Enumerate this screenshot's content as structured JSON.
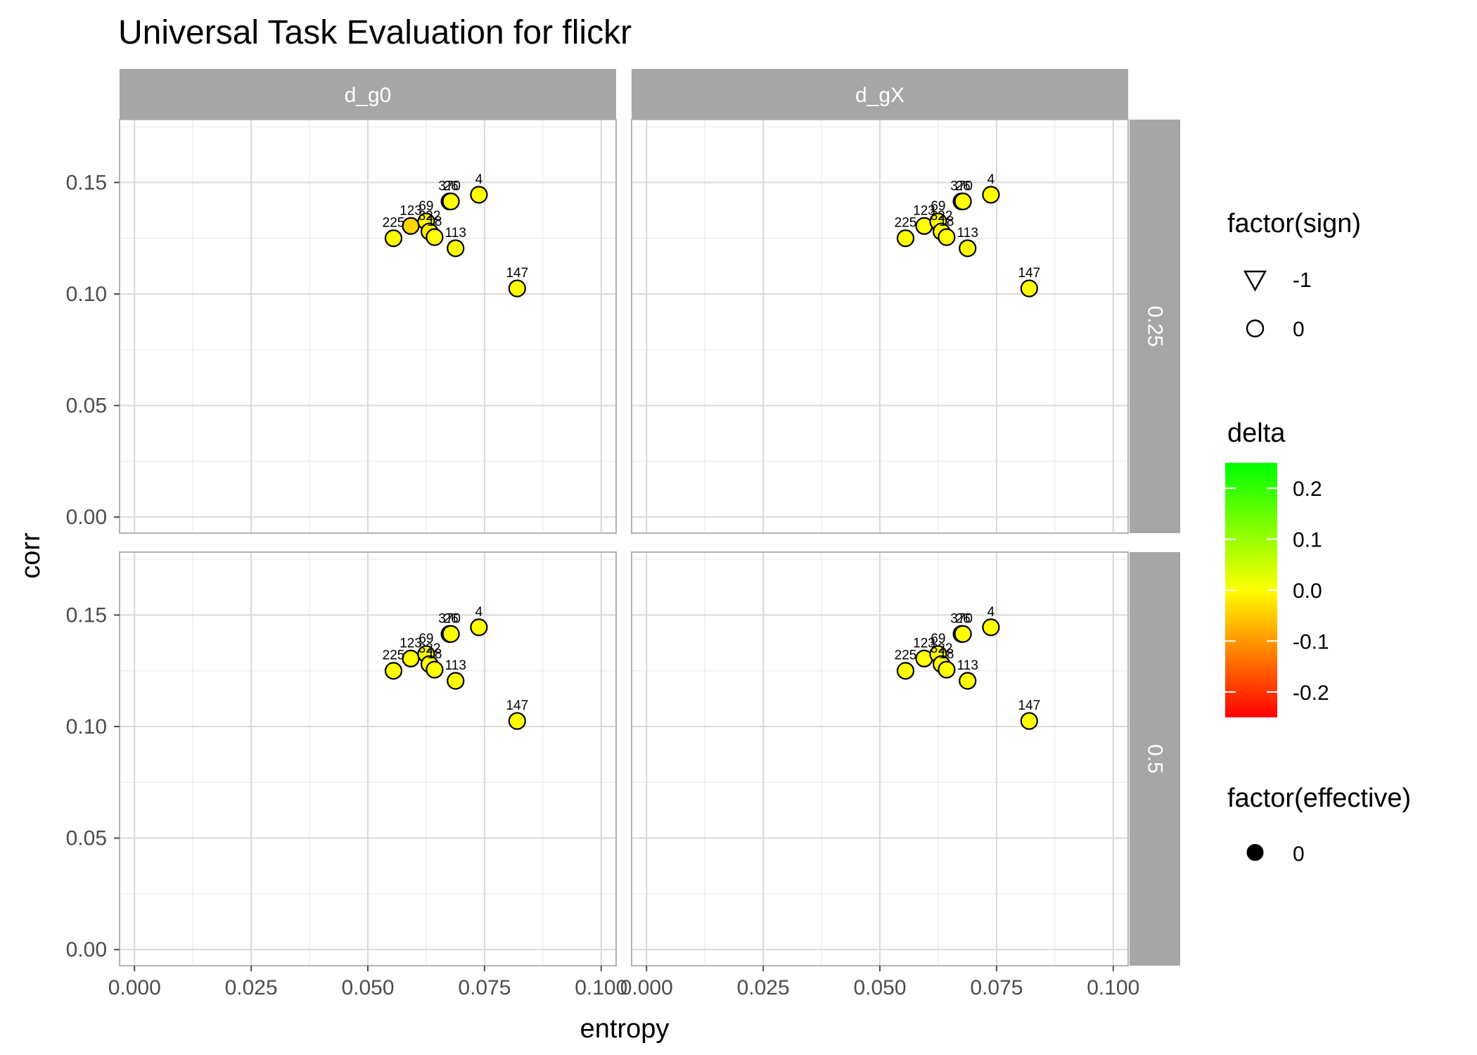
{
  "chart_data": {
    "type": "scatter",
    "title": "Universal Task Evaluation for flickr",
    "xlabel": "entropy",
    "ylabel": "corr",
    "xlim": [
      0,
      0.1
    ],
    "ylim": [
      0,
      0.15
    ],
    "x_ticks": [
      "0.000",
      "0.025",
      "0.050",
      "0.075",
      "0.100"
    ],
    "y_ticks": [
      "0.00",
      "0.05",
      "0.10",
      "0.15"
    ],
    "facet_columns": [
      "d_gX",
      "d_g0"
    ],
    "facet_rows": [
      "0.25",
      "0.5"
    ],
    "grid": true,
    "panels": [
      {
        "col": "d_g0",
        "row": "0.25",
        "points": [
          {
            "label": "225",
            "x": 0.0555,
            "y": 0.125,
            "delta": 0.0
          },
          {
            "label": "123",
            "x": 0.0592,
            "y": 0.1305,
            "delta": -0.04
          },
          {
            "label": "69",
            "x": 0.0625,
            "y": 0.1325,
            "delta": 0.0
          },
          {
            "label": "322",
            "x": 0.0632,
            "y": 0.128,
            "delta": -0.02
          },
          {
            "label": "18",
            "x": 0.0643,
            "y": 0.1255,
            "delta": 0.0
          },
          {
            "label": "370",
            "x": 0.0675,
            "y": 0.1415,
            "delta": 0.0
          },
          {
            "label": "26",
            "x": 0.0678,
            "y": 0.1415,
            "delta": 0.0
          },
          {
            "label": "113",
            "x": 0.0688,
            "y": 0.1205,
            "delta": 0.0
          },
          {
            "label": "4",
            "x": 0.0738,
            "y": 0.1445,
            "delta": 0.0
          },
          {
            "label": "147",
            "x": 0.082,
            "y": 0.1025,
            "delta": 0.0
          }
        ]
      },
      {
        "col": "d_gX",
        "row": "0.25",
        "points": [
          {
            "label": "225",
            "x": 0.0555,
            "y": 0.125,
            "delta": 0.0
          },
          {
            "label": "123",
            "x": 0.0595,
            "y": 0.1305,
            "delta": 0.0
          },
          {
            "label": "69",
            "x": 0.0625,
            "y": 0.1325,
            "delta": 0.0
          },
          {
            "label": "322",
            "x": 0.0632,
            "y": 0.128,
            "delta": 0.0
          },
          {
            "label": "18",
            "x": 0.0643,
            "y": 0.1255,
            "delta": 0.0
          },
          {
            "label": "370",
            "x": 0.0675,
            "y": 0.1415,
            "delta": 0.0
          },
          {
            "label": "26",
            "x": 0.0678,
            "y": 0.1415,
            "delta": 0.0
          },
          {
            "label": "113",
            "x": 0.0688,
            "y": 0.1205,
            "delta": 0.0
          },
          {
            "label": "4",
            "x": 0.0738,
            "y": 0.1445,
            "delta": 0.0
          },
          {
            "label": "147",
            "x": 0.082,
            "y": 0.1025,
            "delta": 0.0
          }
        ]
      },
      {
        "col": "d_g0",
        "row": "0.5",
        "points": [
          {
            "label": "225",
            "x": 0.0555,
            "y": 0.125,
            "delta": 0.0
          },
          {
            "label": "123",
            "x": 0.0592,
            "y": 0.1305,
            "delta": 0.0
          },
          {
            "label": "69",
            "x": 0.0625,
            "y": 0.1325,
            "delta": 0.0
          },
          {
            "label": "322",
            "x": 0.0632,
            "y": 0.128,
            "delta": 0.0
          },
          {
            "label": "18",
            "x": 0.0643,
            "y": 0.1255,
            "delta": 0.0
          },
          {
            "label": "370",
            "x": 0.0675,
            "y": 0.1415,
            "delta": 0.0
          },
          {
            "label": "26",
            "x": 0.0678,
            "y": 0.1415,
            "delta": 0.0
          },
          {
            "label": "113",
            "x": 0.0688,
            "y": 0.1205,
            "delta": 0.0
          },
          {
            "label": "4",
            "x": 0.0738,
            "y": 0.1445,
            "delta": 0.0
          },
          {
            "label": "147",
            "x": 0.082,
            "y": 0.1025,
            "delta": 0.0
          }
        ]
      },
      {
        "col": "d_gX",
        "row": "0.5",
        "points": [
          {
            "label": "225",
            "x": 0.0555,
            "y": 0.125,
            "delta": 0.0
          },
          {
            "label": "123",
            "x": 0.0595,
            "y": 0.1305,
            "delta": 0.0
          },
          {
            "label": "69",
            "x": 0.0625,
            "y": 0.1325,
            "delta": 0.0
          },
          {
            "label": "322",
            "x": 0.0632,
            "y": 0.128,
            "delta": 0.0
          },
          {
            "label": "18",
            "x": 0.0643,
            "y": 0.1255,
            "delta": 0.0
          },
          {
            "label": "370",
            "x": 0.0675,
            "y": 0.1415,
            "delta": 0.0
          },
          {
            "label": "26",
            "x": 0.0678,
            "y": 0.1415,
            "delta": 0.0
          },
          {
            "label": "113",
            "x": 0.0688,
            "y": 0.1205,
            "delta": 0.0
          },
          {
            "label": "4",
            "x": 0.0738,
            "y": 0.1445,
            "delta": 0.0
          },
          {
            "label": "147",
            "x": 0.082,
            "y": 0.1025,
            "delta": 0.0
          }
        ]
      }
    ],
    "legends": {
      "sign": {
        "title": "factor(sign)",
        "entries": [
          {
            "label": "-1",
            "shape": "triangle-down"
          },
          {
            "label": "0",
            "shape": "circle-open"
          }
        ]
      },
      "delta": {
        "title": "delta",
        "range": [
          -0.25,
          0.25
        ],
        "ticks": [
          "0.2",
          "0.1",
          "0.0",
          "-0.1",
          "-0.2"
        ],
        "colors": {
          "low": "#ff0000",
          "mid": "#ffff00",
          "high": "#00ff00"
        }
      },
      "effective": {
        "title": "factor(effective)",
        "entries": [
          {
            "label": "0",
            "shape": "circle-filled"
          }
        ]
      },
      "placement": "right"
    },
    "colors": {
      "strip_bg": "#a6a6a6",
      "point_stroke": "#000000",
      "grid_major": "#d9d9d9",
      "grid_minor": "#ebebeb",
      "panel_border": "#b3b3b3"
    }
  }
}
